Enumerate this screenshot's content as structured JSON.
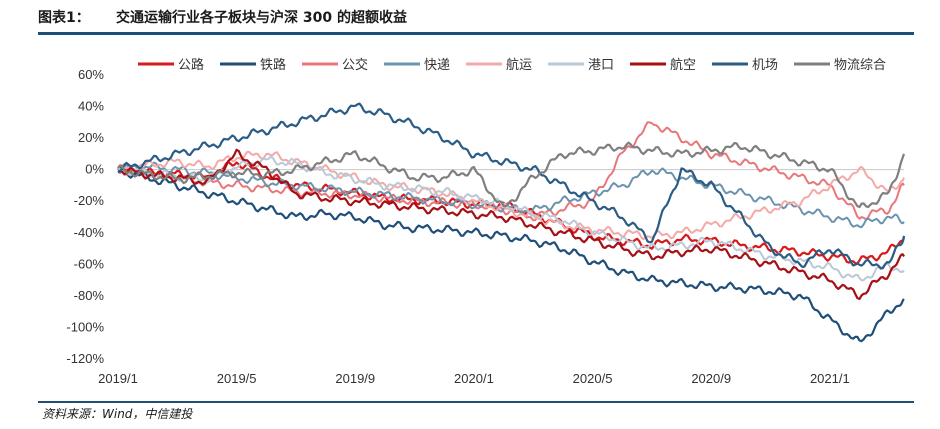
{
  "header": {
    "figure_label": "图表1：",
    "title": "交通运输行业各子板块与沪深 300 的超额收益"
  },
  "source": "资料来源：Wind，中信建投",
  "chart_data": {
    "type": "line",
    "x_ticks": [
      "2019/1",
      "2019/5",
      "2019/9",
      "2020/1",
      "2020/5",
      "2020/9",
      "2021/1"
    ],
    "x_range": [
      "2019/1",
      "2021/3"
    ],
    "y_ticks": [
      "60%",
      "40%",
      "20%",
      "0%",
      "-20%",
      "-40%",
      "-60%",
      "-80%",
      "-100%",
      "-120%"
    ],
    "ylim": [
      -120,
      60
    ],
    "units": "%",
    "grid": false,
    "legend_position": "top",
    "x_month_index": [
      0,
      1,
      2,
      3,
      4,
      5,
      6,
      7,
      8,
      9,
      10,
      11,
      12,
      13,
      14,
      15,
      16,
      17,
      18,
      19,
      20,
      21,
      22,
      23,
      24,
      25,
      26,
      26.5
    ],
    "series": [
      {
        "name": "公路",
        "color": "#d7191c",
        "width": 2.2,
        "values": [
          0,
          -2,
          -3,
          -5,
          5,
          -4,
          -10,
          -12,
          -15,
          -18,
          -19,
          -20,
          -22,
          -22,
          -28,
          -35,
          -42,
          -45,
          -48,
          -44,
          -45,
          -48,
          -50,
          -52,
          -55,
          -58,
          -52,
          -43
        ]
      },
      {
        "name": "铁路",
        "color": "#1f4e79",
        "width": 2.2,
        "values": [
          0,
          -5,
          -10,
          -15,
          -20,
          -25,
          -30,
          -28,
          -30,
          -35,
          -37,
          -38,
          -40,
          -42,
          -45,
          -50,
          -58,
          -65,
          -70,
          -72,
          -74,
          -75,
          -77,
          -80,
          -95,
          -110,
          -90,
          -82
        ]
      },
      {
        "name": "公交",
        "color": "#e8777a",
        "width": 2.0,
        "values": [
          0,
          -3,
          -5,
          -8,
          -10,
          -12,
          -14,
          -15,
          -16,
          -18,
          -20,
          -21,
          -22,
          -25,
          -30,
          -25,
          -20,
          10,
          30,
          20,
          10,
          5,
          0,
          -5,
          -10,
          -30,
          -25,
          -10
        ]
      },
      {
        "name": "快递",
        "color": "#6b93ad",
        "width": 2.0,
        "values": [
          0,
          2,
          0,
          -2,
          -5,
          -8,
          -10,
          -12,
          -14,
          -16,
          -18,
          -20,
          -22,
          -24,
          -26,
          -20,
          -15,
          -10,
          0,
          -5,
          -10,
          -15,
          -20,
          -25,
          -30,
          -35,
          -30,
          -33
        ]
      },
      {
        "name": "航运",
        "color": "#f4a9a9",
        "width": 2.0,
        "values": [
          0,
          3,
          5,
          2,
          8,
          10,
          5,
          0,
          -5,
          -10,
          -12,
          -15,
          -20,
          -25,
          -30,
          -35,
          -38,
          -40,
          -42,
          -40,
          -35,
          -30,
          -25,
          -20,
          -10,
          0,
          -15,
          -5
        ]
      },
      {
        "name": "港口",
        "color": "#b9c9d6",
        "width": 2.0,
        "values": [
          0,
          -2,
          -4,
          -6,
          2,
          6,
          4,
          -2,
          -6,
          -10,
          -12,
          -14,
          -18,
          -22,
          -28,
          -32,
          -40,
          -45,
          -50,
          -48,
          -45,
          -50,
          -55,
          -58,
          -62,
          -70,
          -60,
          -65
        ]
      },
      {
        "name": "航空",
        "color": "#a50f15",
        "width": 2.2,
        "values": [
          0,
          -3,
          -5,
          -8,
          10,
          0,
          -15,
          -18,
          -20,
          -22,
          -24,
          -26,
          -28,
          -30,
          -35,
          -40,
          -45,
          -50,
          -55,
          -52,
          -50,
          -55,
          -60,
          -65,
          -70,
          -80,
          -65,
          -55
        ]
      },
      {
        "name": "机场",
        "color": "#2b5c85",
        "width": 2.2,
        "values": [
          0,
          5,
          10,
          15,
          20,
          25,
          30,
          35,
          40,
          35,
          28,
          20,
          10,
          5,
          0,
          -10,
          -20,
          -30,
          -45,
          0,
          -10,
          -30,
          -50,
          -60,
          -50,
          -60,
          -60,
          -42
        ]
      },
      {
        "name": "物流综合",
        "color": "#7f7f7f",
        "width": 2.2,
        "values": [
          0,
          -3,
          -6,
          -4,
          -2,
          -3,
          0,
          5,
          10,
          2,
          -5,
          -5,
          0,
          -25,
          -5,
          10,
          12,
          15,
          12,
          10,
          12,
          15,
          10,
          5,
          0,
          -25,
          -15,
          10
        ]
      }
    ]
  }
}
